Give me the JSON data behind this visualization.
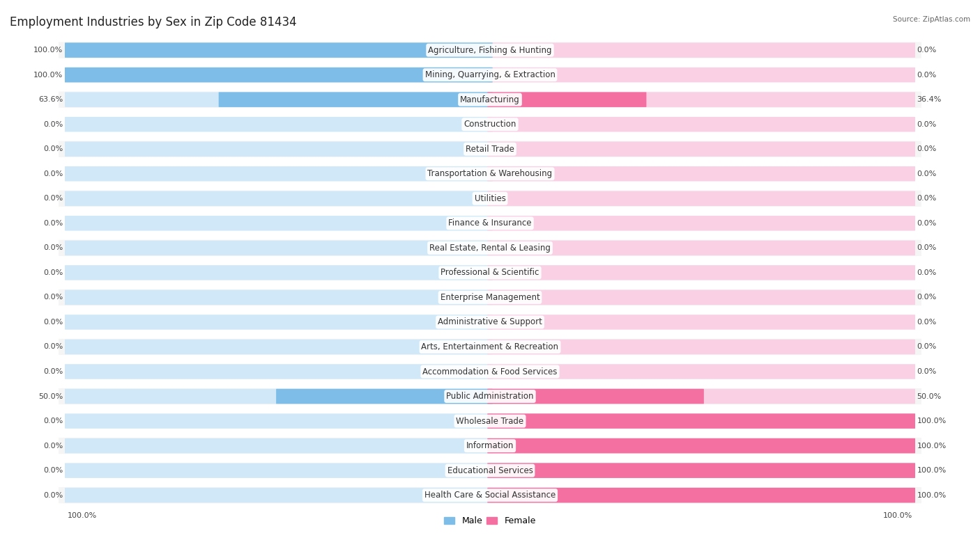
{
  "title": "Employment Industries by Sex in Zip Code 81434",
  "source": "Source: ZipAtlas.com",
  "categories": [
    "Agriculture, Fishing & Hunting",
    "Mining, Quarrying, & Extraction",
    "Manufacturing",
    "Construction",
    "Retail Trade",
    "Transportation & Warehousing",
    "Utilities",
    "Finance & Insurance",
    "Real Estate, Rental & Leasing",
    "Professional & Scientific",
    "Enterprise Management",
    "Administrative & Support",
    "Arts, Entertainment & Recreation",
    "Accommodation & Food Services",
    "Public Administration",
    "Wholesale Trade",
    "Information",
    "Educational Services",
    "Health Care & Social Assistance"
  ],
  "male_pct": [
    100.0,
    100.0,
    63.6,
    0.0,
    0.0,
    0.0,
    0.0,
    0.0,
    0.0,
    0.0,
    0.0,
    0.0,
    0.0,
    0.0,
    50.0,
    0.0,
    0.0,
    0.0,
    0.0
  ],
  "female_pct": [
    0.0,
    0.0,
    36.4,
    0.0,
    0.0,
    0.0,
    0.0,
    0.0,
    0.0,
    0.0,
    0.0,
    0.0,
    0.0,
    0.0,
    50.0,
    100.0,
    100.0,
    100.0,
    100.0
  ],
  "male_color": "#7dbde8",
  "female_color": "#f470a0",
  "male_color_light": "#d0e8f8",
  "female_color_light": "#fad0e4",
  "bg_color": "#ffffff",
  "row_bg_even": "#f5f5f5",
  "row_bg_odd": "#ffffff",
  "title_fontsize": 12,
  "label_fontsize": 8.5,
  "value_fontsize": 8
}
